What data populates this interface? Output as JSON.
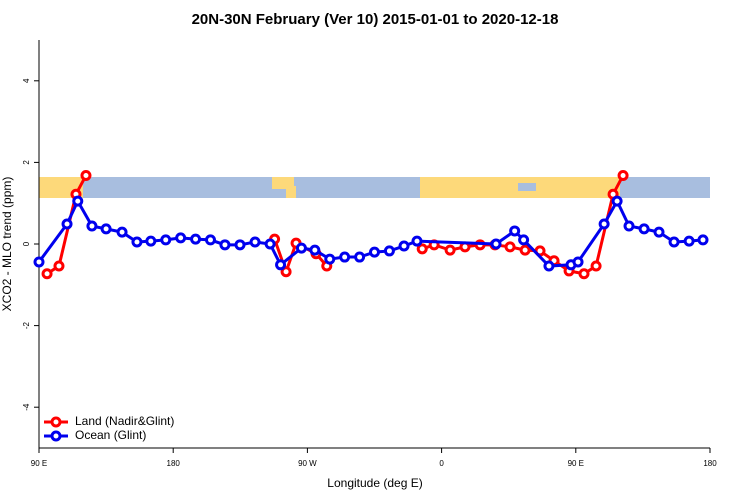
{
  "chart_data": {
    "type": "line",
    "title": "20N-30N February (Ver 10)   2015-01-01 to 2020-12-18",
    "x_label": "Longitude (deg E)",
    "y_label": "XCO2 - MLO trend (ppm)",
    "xlim": [
      90,
      540
    ],
    "ylim": [
      -5,
      5
    ],
    "xticks": [
      {
        "value": 90,
        "label": "90 E"
      },
      180,
      {
        "value": 270,
        "label": "90 W"
      },
      {
        "value": 360,
        "label": "0"
      },
      {
        "value": 450,
        "label": "90 E"
      },
      {
        "value": 540,
        "label": "180"
      }
    ],
    "yticks": [
      -4,
      -2,
      0,
      2,
      4
    ],
    "legend": "bottom-left",
    "series": [
      {
        "name": "Land (Nadir&Glint)",
        "color": "#ff0000",
        "x": [
          95.4,
          103.4,
          114.8,
          121.5,
          180,
          248,
          255.7,
          262.4,
          275.8,
          283,
          330,
          347,
          355,
          365.7,
          375.7,
          385.8,
          395.8,
          405.9,
          416,
          426,
          435.4,
          445.5,
          455.5,
          463.6,
          475,
          481.7
        ],
        "values": [
          -0.73,
          -0.54,
          1.22,
          1.68,
          null,
          0.12,
          -0.68,
          0.02,
          -0.24,
          -0.54,
          null,
          -0.12,
          -0.02,
          -0.15,
          -0.07,
          -0.02,
          -0.02,
          -0.07,
          -0.15,
          -0.17,
          -0.41,
          -0.66,
          -0.73,
          -0.54,
          1.22,
          1.68
        ]
      },
      {
        "name": "Ocean (Glint)",
        "color": "#0000ee",
        "x": [
          90,
          108.8,
          116,
          125.5,
          135,
          145.7,
          155.7,
          165,
          175,
          185,
          195,
          205,
          214.7,
          224.8,
          234.9,
          245,
          252,
          266,
          275,
          285,
          295,
          305,
          315,
          325,
          334.8,
          343.5,
          396.5,
          409,
          415,
          432,
          446.8,
          451.5,
          469,
          477.7,
          485.7,
          495.8,
          505.8,
          515.9,
          526,
          535.3
        ],
        "values": [
          -0.44,
          0.49,
          1.05,
          0.44,
          0.37,
          0.29,
          0.05,
          0.07,
          0.1,
          0.15,
          0.12,
          0.1,
          -0.02,
          -0.02,
          0.05,
          0,
          -0.51,
          -0.1,
          -0.15,
          -0.37,
          -0.32,
          -0.32,
          -0.2,
          -0.17,
          -0.05,
          0.07,
          0,
          0.32,
          0.1,
          -0.54,
          -0.51,
          -0.44,
          0.49,
          1.05,
          0.44,
          0.37,
          0.29,
          0.05,
          0.07,
          0.1
        ]
      }
    ]
  }
}
